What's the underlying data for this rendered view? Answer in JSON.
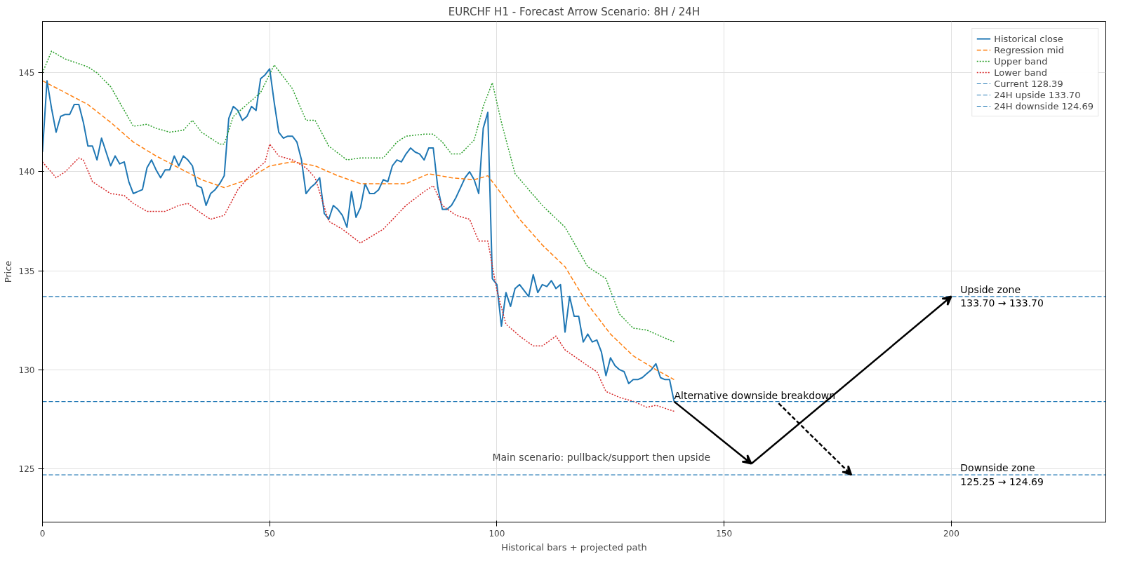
{
  "chart_data": {
    "type": "line",
    "title": "EURCHF H1 - Forecast Arrow Scenario: 8H / 24H",
    "xlabel": "Historical bars + projected path",
    "ylabel": "Price",
    "xlim": [
      0,
      234
    ],
    "ylim": [
      122.3,
      147.6
    ],
    "xticks": [
      0,
      50,
      100,
      150,
      200
    ],
    "yticks": [
      125,
      130,
      135,
      140,
      145
    ],
    "grid": true,
    "legend": "top right",
    "series": [
      {
        "name": "Historical close",
        "color": "#1f77b4",
        "line_style": "solid",
        "x": [
          0,
          1,
          2,
          3,
          4,
          5,
          6,
          7,
          8,
          9,
          10,
          11,
          12,
          13,
          14,
          15,
          16,
          17,
          18,
          19,
          20,
          21,
          22,
          23,
          24,
          25,
          26,
          27,
          28,
          29,
          30,
          31,
          32,
          33,
          34,
          35,
          36,
          37,
          38,
          39,
          40,
          41,
          42,
          43,
          44,
          45,
          46,
          47,
          48,
          49,
          50,
          51,
          52,
          53,
          54,
          55,
          56,
          57,
          58,
          59,
          60,
          61,
          62,
          63,
          64,
          65,
          66,
          67,
          68,
          69,
          70,
          71,
          72,
          73,
          74,
          75,
          76,
          77,
          78,
          79,
          80,
          81,
          82,
          83,
          84,
          85,
          86,
          87,
          88,
          89,
          90,
          91,
          92,
          93,
          94,
          95,
          96,
          97,
          98,
          99,
          100,
          101,
          102,
          103,
          104,
          105,
          106,
          107,
          108,
          109,
          110,
          111,
          112,
          113,
          114,
          115,
          116,
          117,
          118,
          119,
          120,
          121,
          122,
          123,
          124,
          125,
          126,
          127,
          128,
          129,
          130,
          131,
          132,
          133,
          134,
          135,
          136,
          137,
          138,
          139
        ],
        "values": [
          141.0,
          144.6,
          143.2,
          142.0,
          142.8,
          142.9,
          142.9,
          143.4,
          143.4,
          142.5,
          141.3,
          141.3,
          140.6,
          141.7,
          141.0,
          140.3,
          140.8,
          140.4,
          140.5,
          139.5,
          138.9,
          139.0,
          139.1,
          140.2,
          140.6,
          140.1,
          139.7,
          140.1,
          140.1,
          140.8,
          140.3,
          140.8,
          140.6,
          140.3,
          139.3,
          139.2,
          138.3,
          138.9,
          139.1,
          139.4,
          139.8,
          142.7,
          143.3,
          143.1,
          142.6,
          142.8,
          143.3,
          143.1,
          144.7,
          144.9,
          145.2,
          143.5,
          142.0,
          141.7,
          141.8,
          141.8,
          141.5,
          140.6,
          138.9,
          139.2,
          139.4,
          139.7,
          137.9,
          137.6,
          138.3,
          138.1,
          137.8,
          137.2,
          139.0,
          137.7,
          138.2,
          139.4,
          138.9,
          138.9,
          139.1,
          139.6,
          139.5,
          140.3,
          140.6,
          140.5,
          140.9,
          141.2,
          141.0,
          140.9,
          140.6,
          141.2,
          141.2,
          139.2,
          138.1,
          138.1,
          138.3,
          138.7,
          139.2,
          139.7,
          140.0,
          139.6,
          138.9,
          142.2,
          143.0,
          134.6,
          134.3,
          132.2,
          133.9,
          133.2,
          134.1,
          134.3,
          134.0,
          133.7,
          134.8,
          133.9,
          134.3,
          134.2,
          134.5,
          134.1,
          134.3,
          131.9,
          133.7,
          132.7,
          132.7,
          131.4,
          131.8,
          131.4,
          131.5,
          130.9,
          129.7,
          130.6,
          130.2,
          130.0,
          129.9,
          129.3,
          129.5,
          129.5,
          129.6,
          129.8,
          130.0,
          130.3,
          129.6,
          129.5,
          129.5,
          128.39
        ]
      },
      {
        "name": "Regression mid",
        "color": "#ff7f0e",
        "line_style": "dashed",
        "x": [
          0,
          5,
          10,
          15,
          20,
          25,
          30,
          35,
          40,
          45,
          50,
          55,
          60,
          65,
          70,
          75,
          80,
          85,
          90,
          95,
          98,
          100,
          105,
          110,
          115,
          120,
          125,
          130,
          135,
          139
        ],
        "values": [
          144.6,
          144.0,
          143.4,
          142.5,
          141.5,
          140.8,
          140.2,
          139.6,
          139.2,
          139.6,
          140.3,
          140.5,
          140.3,
          139.8,
          139.4,
          139.4,
          139.4,
          139.9,
          139.7,
          139.6,
          139.8,
          139.2,
          137.6,
          136.3,
          135.2,
          133.3,
          131.8,
          130.7,
          130.0,
          129.5
        ]
      },
      {
        "name": "Upper band",
        "color": "#2ca02c",
        "line_style": "dotted",
        "x": [
          0,
          2,
          5,
          10,
          12,
          15,
          20,
          23,
          25,
          28,
          31,
          33,
          35,
          39,
          40,
          42,
          45,
          48,
          51,
          55,
          58,
          60,
          63,
          67,
          70,
          75,
          78,
          80,
          84,
          86,
          88,
          90,
          92,
          95,
          97,
          99,
          101,
          104,
          110,
          115,
          120,
          124,
          127,
          130,
          133,
          139
        ],
        "values": [
          145.0,
          146.1,
          145.7,
          145.3,
          145.0,
          144.3,
          142.3,
          142.4,
          142.2,
          142.0,
          142.1,
          142.6,
          142.0,
          141.4,
          141.4,
          142.8,
          143.4,
          144.0,
          145.4,
          144.2,
          142.6,
          142.6,
          141.3,
          140.6,
          140.7,
          140.7,
          141.5,
          141.8,
          141.9,
          141.9,
          141.5,
          140.9,
          140.9,
          141.6,
          143.3,
          144.5,
          142.5,
          139.9,
          138.3,
          137.2,
          135.2,
          134.6,
          132.8,
          132.1,
          132.0,
          131.4
        ]
      },
      {
        "name": "Lower band",
        "color": "#d62728",
        "line_style": "dotted",
        "x": [
          0,
          3,
          5,
          8,
          9,
          11,
          15,
          18,
          20,
          23,
          27,
          30,
          32,
          35,
          37,
          40,
          43,
          46,
          49,
          50,
          52,
          55,
          58,
          60,
          63,
          66,
          70,
          75,
          80,
          84,
          86,
          88,
          91,
          94,
          96,
          98,
          100,
          102,
          105,
          108,
          110,
          113,
          115,
          120,
          122,
          124,
          127,
          130,
          133,
          135,
          139
        ],
        "values": [
          140.5,
          139.7,
          140.0,
          140.7,
          140.6,
          139.5,
          138.9,
          138.8,
          138.4,
          138.0,
          138.0,
          138.3,
          138.4,
          137.9,
          137.6,
          137.8,
          139.1,
          139.9,
          140.5,
          141.4,
          140.8,
          140.6,
          140.2,
          139.7,
          137.5,
          137.1,
          136.4,
          137.1,
          138.3,
          139.0,
          139.3,
          138.3,
          137.8,
          137.6,
          136.5,
          136.5,
          134.0,
          132.3,
          131.7,
          131.2,
          131.2,
          131.7,
          131.0,
          130.2,
          129.9,
          128.9,
          128.6,
          128.4,
          128.1,
          128.2,
          127.9
        ]
      }
    ],
    "ref_lines": [
      {
        "axis": "y",
        "value": 128.39,
        "label": "Current 128.39",
        "color": "#1f77b4",
        "line_style": "dashed"
      },
      {
        "axis": "y",
        "value": 133.7,
        "label": "24H upside 133.70",
        "color": "#1f77b4",
        "line_style": "dashed"
      },
      {
        "axis": "y",
        "value": 124.69,
        "label": "24H downside 124.69",
        "color": "#1f77b4",
        "line_style": "dashed"
      }
    ],
    "annotations": [
      {
        "text": "Upside zone\n133.70 → 133.70",
        "y": 133.7
      },
      {
        "text": "Downside zone\n125.25 → 124.69",
        "y": 124.69
      },
      {
        "text": "Alternative downside breakdown",
        "y": 128.39
      },
      "Main scenario: pullback/support then upside"
    ]
  }
}
